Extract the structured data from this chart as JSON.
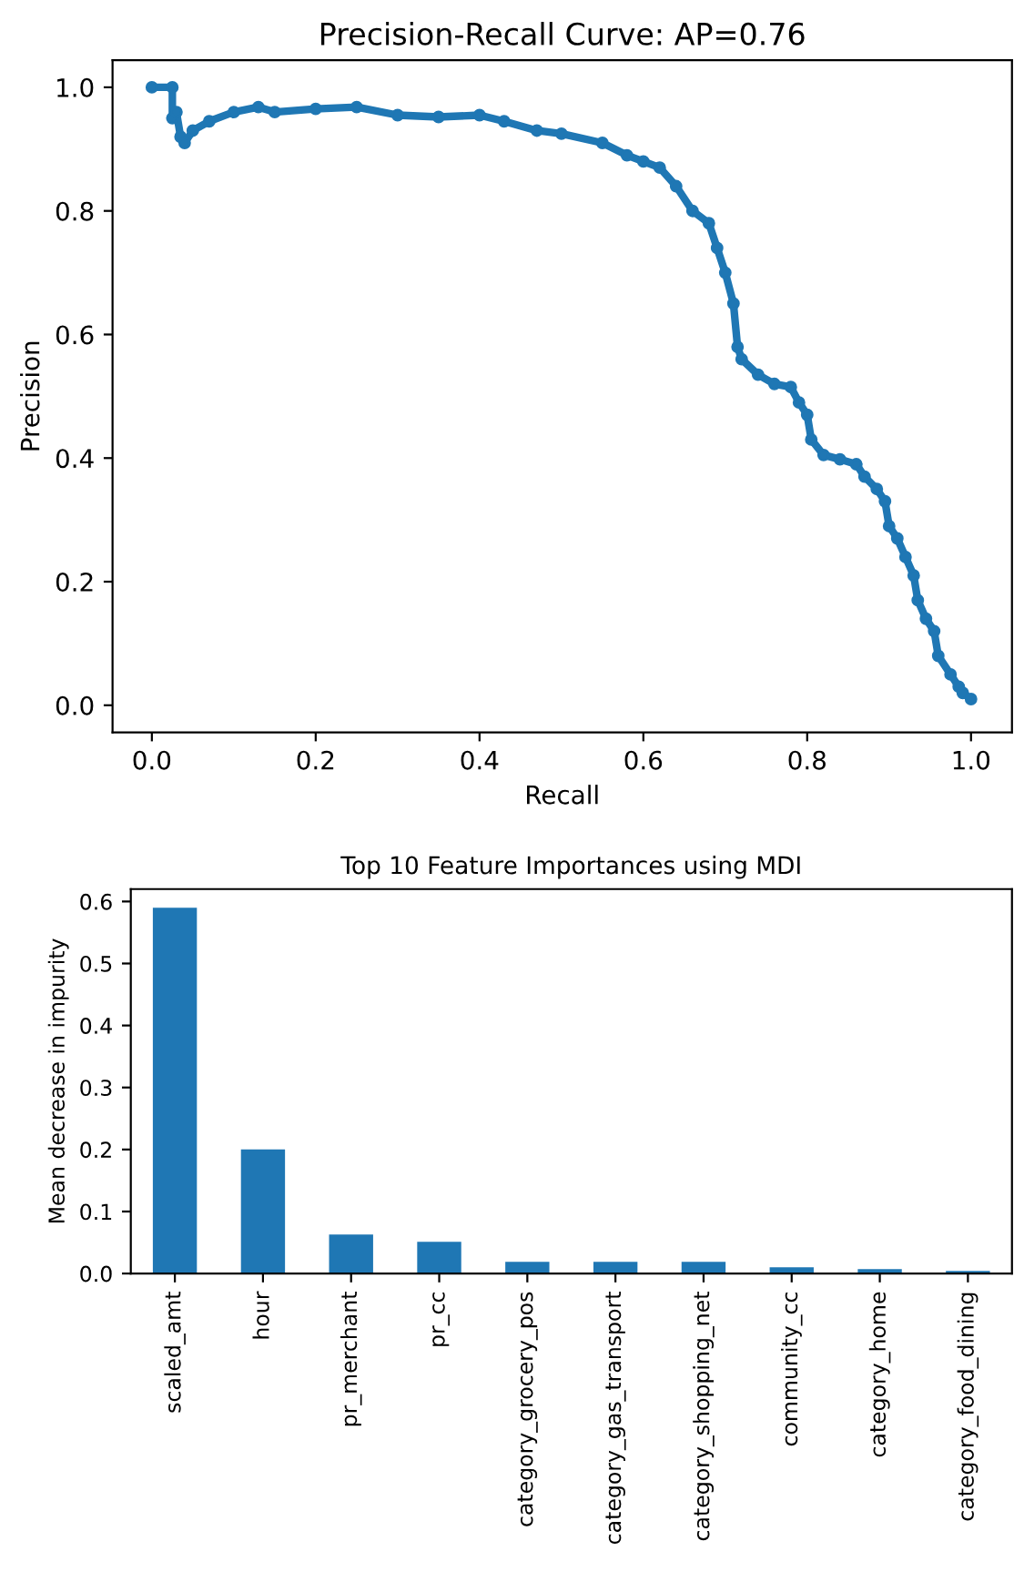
{
  "chart_data": [
    {
      "type": "line",
      "title": "Precision-Recall Curve: AP=0.76",
      "xlabel": "Recall",
      "ylabel": "Precision",
      "marker": "circle",
      "line_style": "solid",
      "xlim": [
        -0.048,
        1.05
      ],
      "ylim": [
        -0.044,
        1.044
      ],
      "xticks": [
        {
          "value": 0,
          "label": "0.0"
        },
        {
          "value": 0.2,
          "label": "0.2"
        },
        {
          "value": 0.4,
          "label": "0.4"
        },
        {
          "value": 0.6,
          "label": "0.6"
        },
        {
          "value": 0.8,
          "label": "0.8"
        },
        {
          "value": 1,
          "label": "1.0"
        }
      ],
      "yticks": [
        {
          "value": 0,
          "label": "0.0"
        },
        {
          "value": 0.2,
          "label": "0.2"
        },
        {
          "value": 0.4,
          "label": "0.4"
        },
        {
          "value": 0.6,
          "label": "0.6"
        },
        {
          "value": 0.8,
          "label": "0.8"
        },
        {
          "value": 1,
          "label": "1.0"
        }
      ],
      "series": [
        {
          "color": "#1f77b4",
          "x": [
            0.0,
            0.025,
            0.025,
            0.03,
            0.035,
            0.04,
            0.05,
            0.07,
            0.1,
            0.13,
            0.15,
            0.2,
            0.25,
            0.3,
            0.35,
            0.4,
            0.43,
            0.47,
            0.5,
            0.55,
            0.58,
            0.6,
            0.62,
            0.64,
            0.66,
            0.68,
            0.69,
            0.7,
            0.71,
            0.715,
            0.72,
            0.74,
            0.76,
            0.78,
            0.79,
            0.8,
            0.805,
            0.82,
            0.84,
            0.86,
            0.87,
            0.885,
            0.895,
            0.9,
            0.91,
            0.92,
            0.93,
            0.935,
            0.945,
            0.955,
            0.96,
            0.975,
            0.985,
            0.99,
            1.0
          ],
          "values": [
            1.0,
            1.0,
            0.95,
            0.96,
            0.92,
            0.91,
            0.93,
            0.945,
            0.96,
            0.968,
            0.96,
            0.965,
            0.968,
            0.955,
            0.952,
            0.955,
            0.945,
            0.93,
            0.925,
            0.91,
            0.89,
            0.88,
            0.87,
            0.84,
            0.8,
            0.78,
            0.74,
            0.7,
            0.65,
            0.58,
            0.56,
            0.535,
            0.52,
            0.515,
            0.49,
            0.47,
            0.43,
            0.405,
            0.398,
            0.39,
            0.37,
            0.35,
            0.33,
            0.29,
            0.27,
            0.24,
            0.21,
            0.17,
            0.14,
            0.12,
            0.08,
            0.05,
            0.03,
            0.02,
            0.01
          ]
        }
      ]
    },
    {
      "type": "bar",
      "title": "Top 10 Feature Importances using MDI",
      "ylabel": "Mean decrease in impurity",
      "categories": [
        "scaled_amt",
        "hour",
        "pr_merchant",
        "pr_cc",
        "category_grocery_pos",
        "category_gas_transport",
        "category_shopping_net",
        "community_cc",
        "category_home",
        "category_food_dining"
      ],
      "ylim": [
        0,
        0.62
      ],
      "yticks": [
        {
          "value": 0,
          "label": "0.0"
        },
        {
          "value": 0.1,
          "label": "0.1"
        },
        {
          "value": 0.2,
          "label": "0.2"
        },
        {
          "value": 0.3,
          "label": "0.3"
        },
        {
          "value": 0.4,
          "label": "0.4"
        },
        {
          "value": 0.5,
          "label": "0.5"
        },
        {
          "value": 0.6,
          "label": "0.6"
        }
      ],
      "series": [
        {
          "color": "#1f77b4",
          "values": [
            0.59,
            0.2,
            0.063,
            0.051,
            0.019,
            0.019,
            0.019,
            0.01,
            0.007,
            0.004
          ]
        }
      ]
    }
  ]
}
